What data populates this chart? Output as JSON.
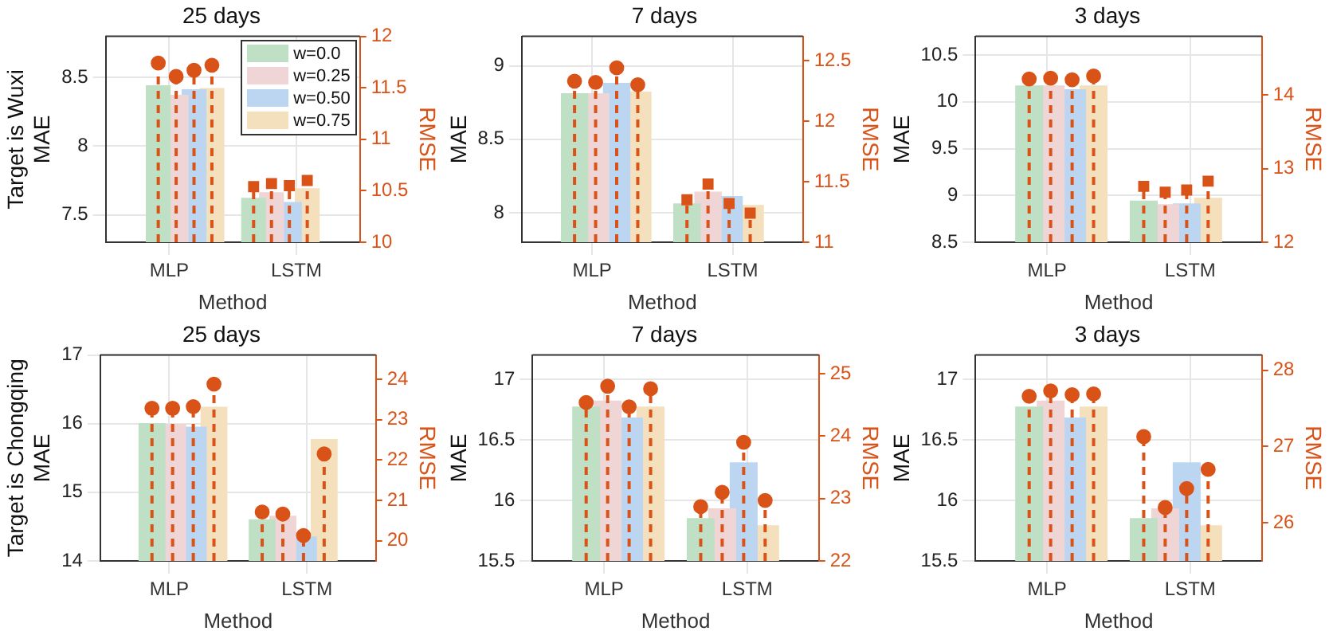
{
  "chart_data": [
    {
      "type": "bar",
      "title": "25 days",
      "xlabel": "Method",
      "ylabel": "Target is Wuxi\nMAE",
      "y2label": "RMSE",
      "categories": [
        "MLP",
        "LSTM"
      ],
      "ylim": [
        7.3,
        8.8
      ],
      "yticks": [
        7.5,
        8,
        8.5
      ],
      "y2lim": [
        10,
        12
      ],
      "y2ticks": [
        10,
        10.5,
        11,
        11.5,
        12
      ],
      "grid": true,
      "legend": "top right",
      "series": [
        {
          "name": "w=0.0",
          "color": "#bfe0c4",
          "values": [
            8.44,
            7.62
          ]
        },
        {
          "name": "w=0.25",
          "color": "#efd5d5",
          "values": [
            8.37,
            7.66
          ]
        },
        {
          "name": "w=0.50",
          "color": "#bcd6f2",
          "values": [
            8.41,
            7.59
          ]
        },
        {
          "name": "w=0.75",
          "color": "#f5e0bd",
          "values": [
            8.42,
            7.69
          ]
        },
        {
          "type": "lollipop",
          "axis": "y2",
          "color": "#d95319",
          "marker": "circle",
          "line_style": "dashed",
          "values": [
            11.74,
            null
          ]
        },
        {
          "type": "lollipop",
          "axis": "y2",
          "color": "#d95319",
          "marker": "circle",
          "line_style": "dashed",
          "values": [
            11.61,
            null
          ]
        },
        {
          "type": "lollipop",
          "axis": "y2",
          "color": "#d95319",
          "marker": "circle",
          "line_style": "dashed",
          "values": [
            11.67,
            null
          ]
        },
        {
          "type": "lollipop",
          "axis": "y2",
          "color": "#d95319",
          "marker": "circle",
          "line_style": "dashed",
          "values": [
            11.72,
            null
          ]
        },
        {
          "type": "lollipop",
          "axis": "y2",
          "color": "#d95319",
          "marker": "square",
          "line_style": "dashed",
          "values": [
            null,
            10.54
          ]
        },
        {
          "type": "lollipop",
          "axis": "y2",
          "color": "#d95319",
          "marker": "square",
          "line_style": "dashed",
          "values": [
            null,
            10.57
          ]
        },
        {
          "type": "lollipop",
          "axis": "y2",
          "color": "#d95319",
          "marker": "square",
          "line_style": "dashed",
          "values": [
            null,
            10.55
          ]
        },
        {
          "type": "lollipop",
          "axis": "y2",
          "color": "#d95319",
          "marker": "square",
          "line_style": "dashed",
          "values": [
            null,
            10.6
          ]
        }
      ]
    },
    {
      "type": "bar",
      "title": "7 days",
      "xlabel": "Method",
      "ylabel": "MAE",
      "y2label": "RMSE",
      "categories": [
        "MLP",
        "LSTM"
      ],
      "ylim": [
        7.8,
        9.2
      ],
      "yticks": [
        8,
        8.5,
        9
      ],
      "y2lim": [
        11,
        12.7
      ],
      "y2ticks": [
        11,
        11.5,
        12,
        12.5
      ],
      "grid": true,
      "series": [
        {
          "color": "#bfe0c4",
          "values": [
            8.81,
            8.06
          ]
        },
        {
          "color": "#efd5d5",
          "values": [
            8.81,
            8.14
          ]
        },
        {
          "color": "#bcd6f2",
          "values": [
            8.88,
            8.11
          ]
        },
        {
          "color": "#f5e0bd",
          "values": [
            8.82,
            8.05
          ]
        },
        {
          "type": "lollipop",
          "axis": "y2",
          "color": "#d95319",
          "marker": "circle",
          "line_style": "dashed",
          "values": [
            12.33,
            null
          ]
        },
        {
          "type": "lollipop",
          "axis": "y2",
          "color": "#d95319",
          "marker": "circle",
          "line_style": "dashed",
          "values": [
            12.32,
            null
          ]
        },
        {
          "type": "lollipop",
          "axis": "y2",
          "color": "#d95319",
          "marker": "circle",
          "line_style": "dashed",
          "values": [
            12.44,
            null
          ]
        },
        {
          "type": "lollipop",
          "axis": "y2",
          "color": "#d95319",
          "marker": "circle",
          "line_style": "dashed",
          "values": [
            12.3,
            null
          ]
        },
        {
          "type": "lollipop",
          "axis": "y2",
          "color": "#d95319",
          "marker": "square",
          "line_style": "dashed",
          "values": [
            null,
            11.35
          ]
        },
        {
          "type": "lollipop",
          "axis": "y2",
          "color": "#d95319",
          "marker": "square",
          "line_style": "dashed",
          "values": [
            null,
            11.48
          ]
        },
        {
          "type": "lollipop",
          "axis": "y2",
          "color": "#d95319",
          "marker": "square",
          "line_style": "dashed",
          "values": [
            null,
            11.32
          ]
        },
        {
          "type": "lollipop",
          "axis": "y2",
          "color": "#d95319",
          "marker": "square",
          "line_style": "dashed",
          "values": [
            null,
            11.24
          ]
        }
      ]
    },
    {
      "type": "bar",
      "title": "3 days",
      "xlabel": "Method",
      "ylabel": "MAE",
      "y2label": "RMSE",
      "categories": [
        "MLP",
        "LSTM"
      ],
      "ylim": [
        8.5,
        10.7
      ],
      "yticks": [
        8.5,
        9,
        9.5,
        10,
        10.5
      ],
      "y2lim": [
        12,
        14.8
      ],
      "y2ticks": [
        12,
        13,
        14
      ],
      "grid": true,
      "series": [
        {
          "color": "#bfe0c4",
          "values": [
            10.17,
            8.94
          ]
        },
        {
          "color": "#efd5d5",
          "values": [
            10.17,
            8.9
          ]
        },
        {
          "color": "#bcd6f2",
          "values": [
            10.13,
            8.91
          ]
        },
        {
          "color": "#f5e0bd",
          "values": [
            10.17,
            8.97
          ]
        },
        {
          "type": "lollipop",
          "axis": "y2",
          "color": "#d95319",
          "marker": "circle",
          "line_style": "dashed",
          "values": [
            14.22,
            null
          ]
        },
        {
          "type": "lollipop",
          "axis": "y2",
          "color": "#d95319",
          "marker": "circle",
          "line_style": "dashed",
          "values": [
            14.23,
            null
          ]
        },
        {
          "type": "lollipop",
          "axis": "y2",
          "color": "#d95319",
          "marker": "circle",
          "line_style": "dashed",
          "values": [
            14.21,
            null
          ]
        },
        {
          "type": "lollipop",
          "axis": "y2",
          "color": "#d95319",
          "marker": "circle",
          "line_style": "dashed",
          "values": [
            14.26,
            null
          ]
        },
        {
          "type": "lollipop",
          "axis": "y2",
          "color": "#d95319",
          "marker": "square",
          "line_style": "dashed",
          "values": [
            null,
            12.76
          ]
        },
        {
          "type": "lollipop",
          "axis": "y2",
          "color": "#d95319",
          "marker": "square",
          "line_style": "dashed",
          "values": [
            null,
            12.68
          ]
        },
        {
          "type": "lollipop",
          "axis": "y2",
          "color": "#d95319",
          "marker": "square",
          "line_style": "dashed",
          "values": [
            null,
            12.71
          ]
        },
        {
          "type": "lollipop",
          "axis": "y2",
          "color": "#d95319",
          "marker": "square",
          "line_style": "dashed",
          "values": [
            null,
            12.83
          ]
        }
      ]
    },
    {
      "type": "bar",
      "title": "25 days",
      "xlabel": "Method",
      "ylabel": "Target is Chongqing\nMAE",
      "y2label": "RMSE",
      "categories": [
        "MLP",
        "LSTM"
      ],
      "ylim": [
        14,
        17
      ],
      "yticks": [
        14,
        15,
        16,
        17
      ],
      "y2lim": [
        19.5,
        24.6
      ],
      "y2ticks": [
        20,
        21,
        22,
        23,
        24
      ],
      "grid": true,
      "series": [
        {
          "color": "#bfe0c4",
          "values": [
            16.0,
            14.6
          ]
        },
        {
          "color": "#efd5d5",
          "values": [
            15.99,
            14.65
          ]
        },
        {
          "color": "#bcd6f2",
          "values": [
            15.95,
            14.35
          ]
        },
        {
          "color": "#f5e0bd",
          "values": [
            16.24,
            15.77
          ]
        },
        {
          "type": "lollipop",
          "axis": "y2",
          "color": "#d95319",
          "marker": "circle",
          "line_style": "dashed",
          "values": [
            23.28,
            20.71
          ]
        },
        {
          "type": "lollipop",
          "axis": "y2",
          "color": "#d95319",
          "marker": "circle",
          "line_style": "dashed",
          "values": [
            23.28,
            20.66
          ]
        },
        {
          "type": "lollipop",
          "axis": "y2",
          "color": "#d95319",
          "marker": "circle",
          "line_style": "dashed",
          "values": [
            23.32,
            20.13
          ]
        },
        {
          "type": "lollipop",
          "axis": "y2",
          "color": "#d95319",
          "marker": "circle",
          "line_style": "dashed",
          "values": [
            23.88,
            22.15
          ]
        }
      ]
    },
    {
      "type": "bar",
      "title": "7 days",
      "xlabel": "Method",
      "ylabel": "MAE",
      "y2label": "RMSE",
      "categories": [
        "MLP",
        "LSTM"
      ],
      "ylim": [
        15.5,
        17.2
      ],
      "yticks": [
        15.5,
        16,
        16.5,
        17
      ],
      "y2lim": [
        22,
        25.3
      ],
      "y2ticks": [
        22,
        23,
        24,
        25
      ],
      "grid": true,
      "series": [
        {
          "color": "#bfe0c4",
          "values": [
            16.77,
            15.85
          ]
        },
        {
          "color": "#efd5d5",
          "values": [
            16.82,
            15.93
          ]
        },
        {
          "color": "#bcd6f2",
          "values": [
            16.68,
            16.31
          ]
        },
        {
          "color": "#f5e0bd",
          "values": [
            16.77,
            15.79
          ]
        },
        {
          "type": "lollipop",
          "axis": "y2",
          "color": "#d95319",
          "marker": "circle",
          "line_style": "dashed",
          "values": [
            24.54,
            22.87
          ]
        },
        {
          "type": "lollipop",
          "axis": "y2",
          "color": "#d95319",
          "marker": "circle",
          "line_style": "dashed",
          "values": [
            24.8,
            23.1
          ]
        },
        {
          "type": "lollipop",
          "axis": "y2",
          "color": "#d95319",
          "marker": "circle",
          "line_style": "dashed",
          "values": [
            24.47,
            23.9
          ]
        },
        {
          "type": "lollipop",
          "axis": "y2",
          "color": "#d95319",
          "marker": "circle",
          "line_style": "dashed",
          "values": [
            24.76,
            22.97
          ]
        }
      ]
    },
    {
      "type": "bar",
      "title": "3 days",
      "xlabel": "Method",
      "ylabel": "MAE",
      "y2label": "RMSE",
      "categories": [
        "MLP",
        "LSTM"
      ],
      "ylim": [
        15.5,
        17.2
      ],
      "yticks": [
        15.5,
        16,
        16.5,
        17
      ],
      "y2lim": [
        25.5,
        28.2
      ],
      "y2ticks": [
        26,
        27,
        28
      ],
      "grid": true,
      "series": [
        {
          "color": "#bfe0c4",
          "values": [
            16.77,
            15.85
          ]
        },
        {
          "color": "#efd5d5",
          "values": [
            16.82,
            15.93
          ]
        },
        {
          "color": "#bcd6f2",
          "values": [
            16.68,
            16.31
          ]
        },
        {
          "color": "#f5e0bd",
          "values": [
            16.77,
            15.79
          ]
        },
        {
          "type": "lollipop",
          "axis": "y2",
          "color": "#d95319",
          "marker": "circle",
          "line_style": "dashed",
          "values": [
            27.66,
            27.13
          ]
        },
        {
          "type": "lollipop",
          "axis": "y2",
          "color": "#d95319",
          "marker": "circle",
          "line_style": "dashed",
          "values": [
            27.73,
            26.2
          ]
        },
        {
          "type": "lollipop",
          "axis": "y2",
          "color": "#d95319",
          "marker": "circle",
          "line_style": "dashed",
          "values": [
            27.68,
            26.45
          ]
        },
        {
          "type": "lollipop",
          "axis": "y2",
          "color": "#d95319",
          "marker": "circle",
          "line_style": "dashed",
          "values": [
            27.69,
            26.7
          ]
        }
      ]
    }
  ]
}
